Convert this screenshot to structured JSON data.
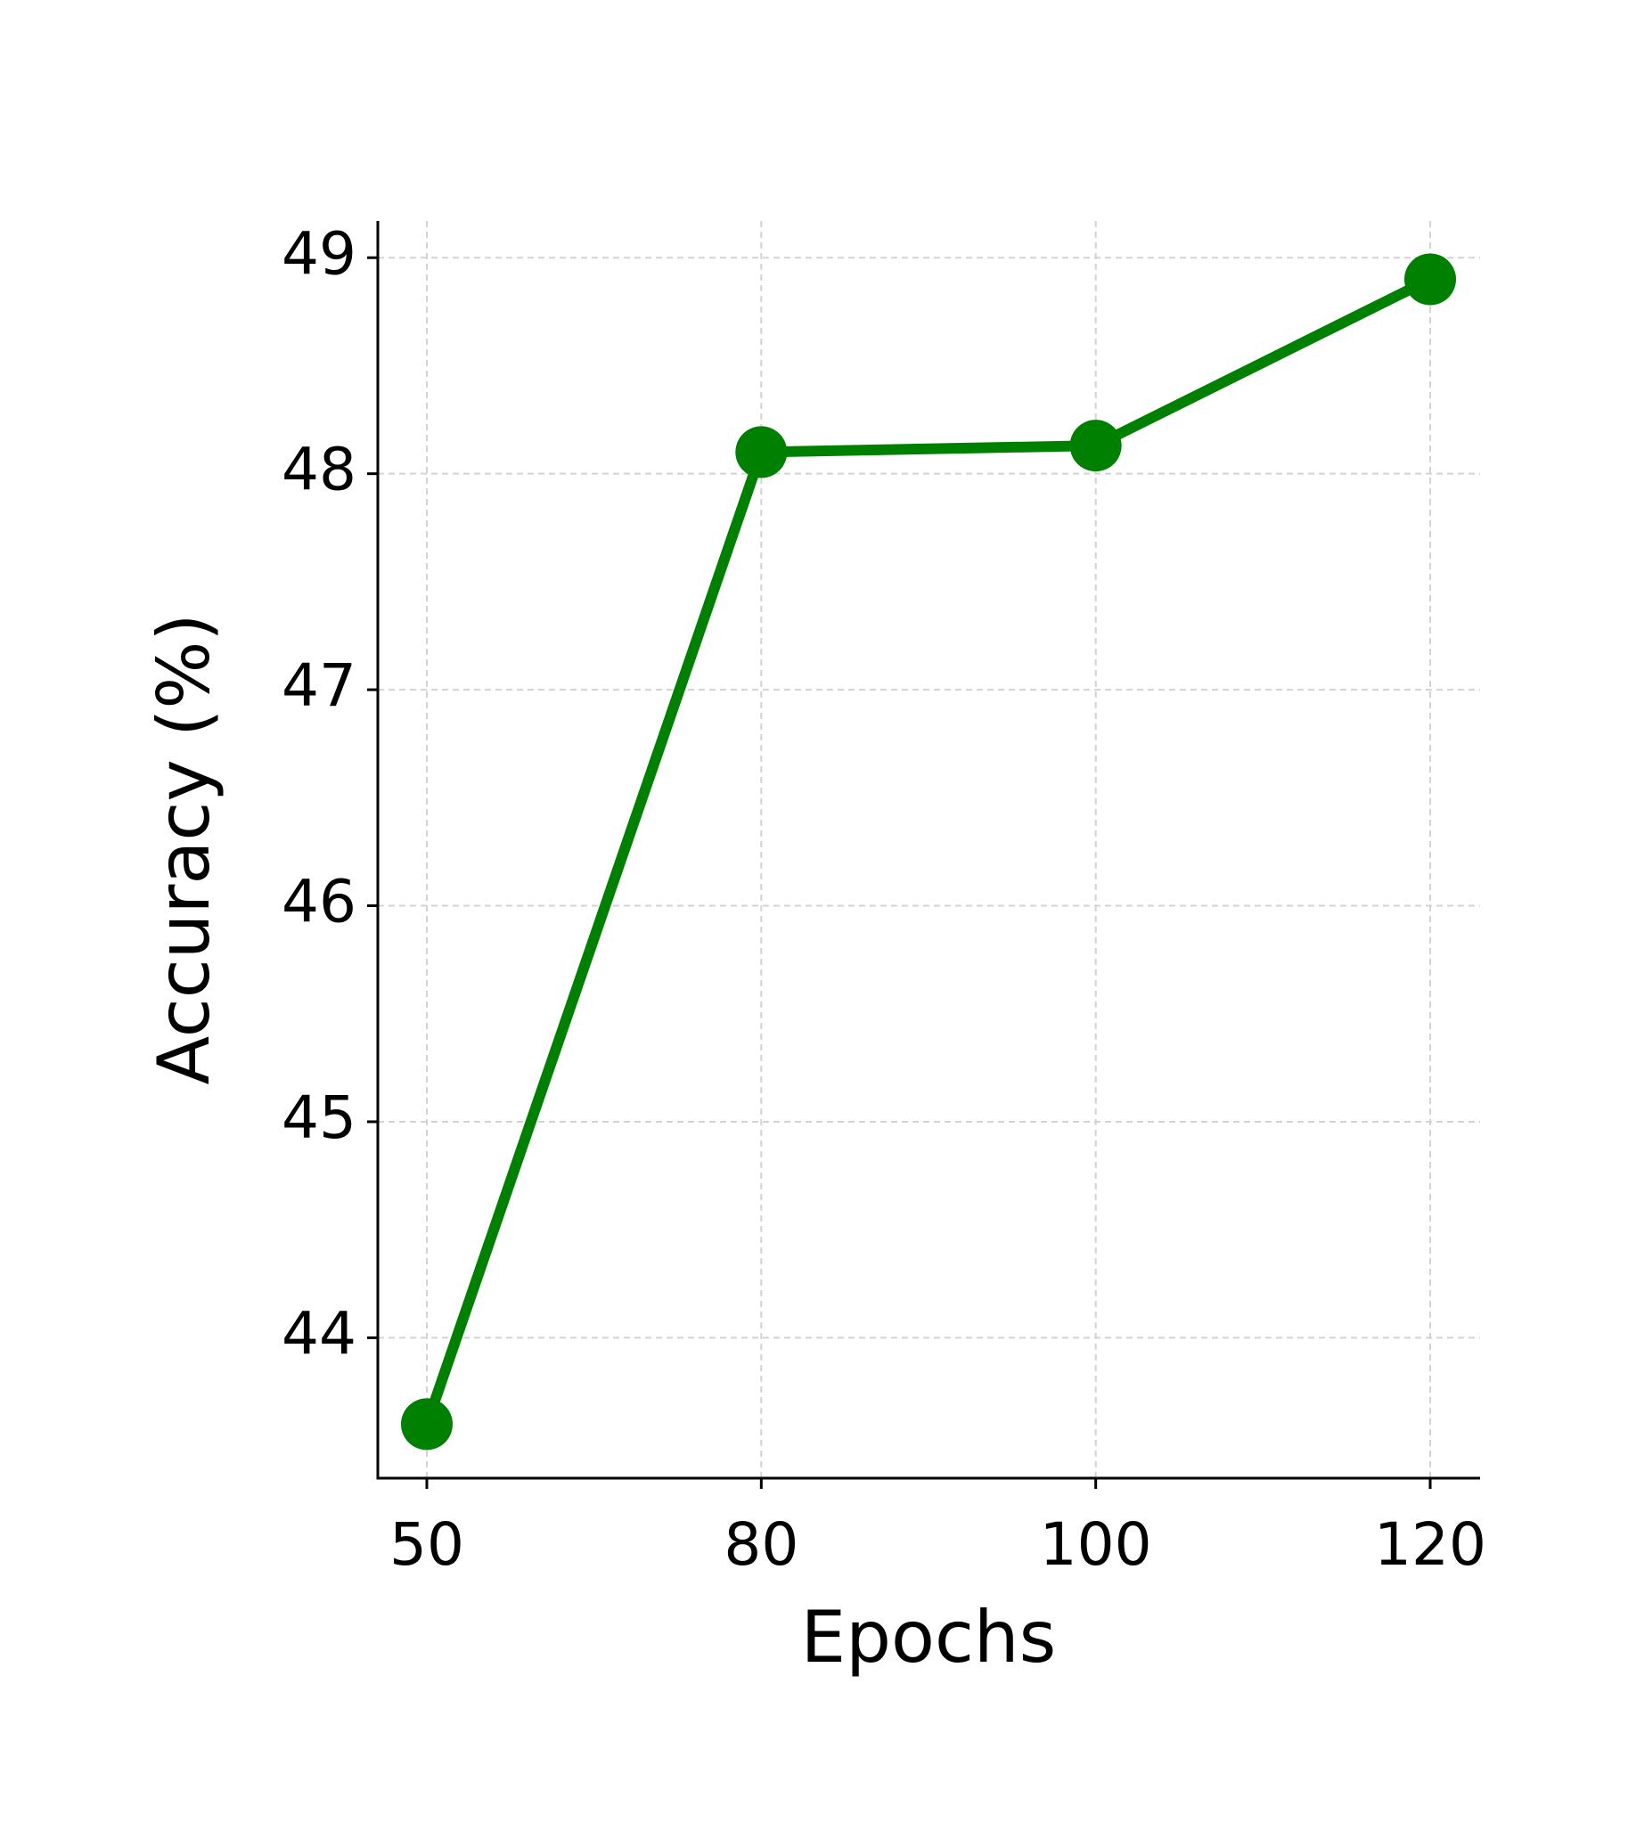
{
  "chart_data": {
    "type": "line",
    "x_label": "Epochs",
    "y_label": "Accuracy (%)",
    "categories": [
      "50",
      "80",
      "100",
      "120"
    ],
    "series": [
      {
        "name": "Accuracy",
        "color": "#008000",
        "values": [
          43.6,
          48.1,
          48.13,
          48.9
        ]
      }
    ],
    "ylim": [
      43.35,
      49.17
    ],
    "yticks": [
      44,
      45,
      46,
      47,
      48,
      49
    ],
    "grid": true
  }
}
